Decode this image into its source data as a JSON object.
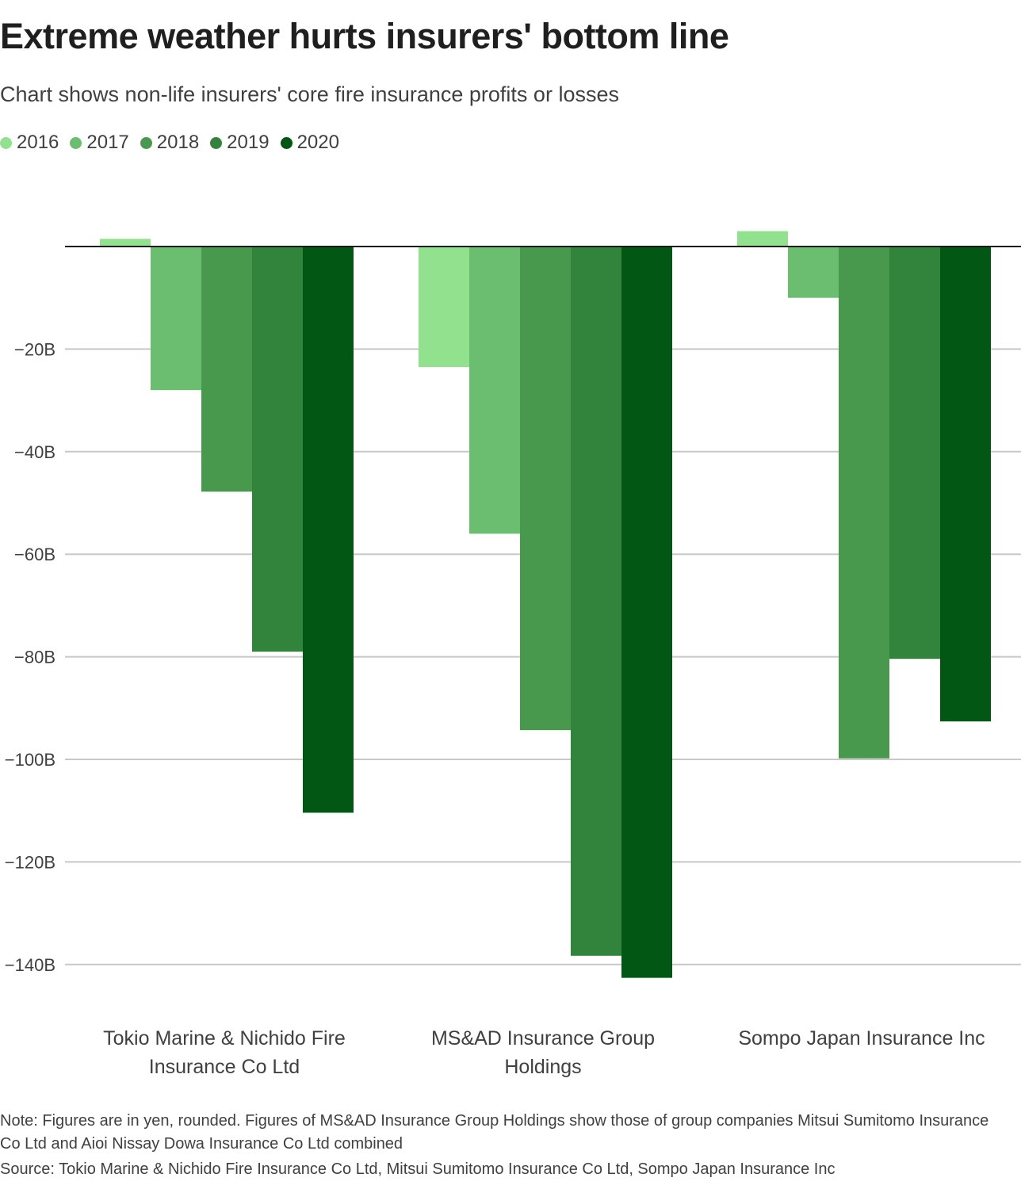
{
  "title": "Extreme weather hurts insurers' bottom line",
  "subtitle": "Chart shows non-life insurers' core fire insurance profits or losses",
  "note": "Note: Figures are in yen, rounded. Figures of MS&AD Insurance Group Holdings show those of group companies Mitsui Sumitomo Insurance Co Ltd and Aioi Nissay Dowa Insurance Co Ltd combined",
  "source": "Source: Tokio Marine & Nichido Fire Insurance Co Ltd, Mitsui Sumitomo Insurance Co Ltd, Sompo Japan Insurance Inc",
  "legend": [
    {
      "label": "2016",
      "color": "#91e18f"
    },
    {
      "label": "2017",
      "color": "#6bbd70"
    },
    {
      "label": "2018",
      "color": "#48994d"
    },
    {
      "label": "2019",
      "color": "#32843c"
    },
    {
      "label": "2020",
      "color": "#025714"
    }
  ],
  "chart_data": {
    "type": "bar",
    "title": "Extreme weather hurts insurers' bottom line",
    "subtitle": "Chart shows non-life insurers' core fire insurance profits or losses",
    "xlabel": "",
    "ylabel": "",
    "unit": "B yen",
    "categories": [
      [
        "Tokio Marine & Nichido Fire",
        "Insurance Co Ltd"
      ],
      [
        "MS&AD Insurance Group",
        "Holdings"
      ],
      [
        "Sompo Japan Insurance Inc"
      ]
    ],
    "series": [
      {
        "name": "2016",
        "color": "#91e18f",
        "values": [
          1.5,
          -23.5,
          3
        ]
      },
      {
        "name": "2017",
        "color": "#6bbd70",
        "values": [
          -28,
          -56,
          -10
        ]
      },
      {
        "name": "2018",
        "color": "#48994d",
        "values": [
          -47.8,
          -94.3,
          -99.8
        ]
      },
      {
        "name": "2019",
        "color": "#32843c",
        "values": [
          -79,
          -138.3,
          -80.4
        ]
      },
      {
        "name": "2020",
        "color": "#025714",
        "values": [
          -110.4,
          -142.6,
          -92.6
        ]
      }
    ],
    "ylim": [
      -150,
      5
    ],
    "yticks": [
      -20,
      -40,
      -60,
      -80,
      -100,
      -120,
      -140
    ],
    "ytick_labels": [
      "−20B",
      "−40B",
      "−60B",
      "−80B",
      "−100B",
      "−120B",
      "−140B"
    ],
    "grid": true,
    "legend_position": "top-left"
  }
}
